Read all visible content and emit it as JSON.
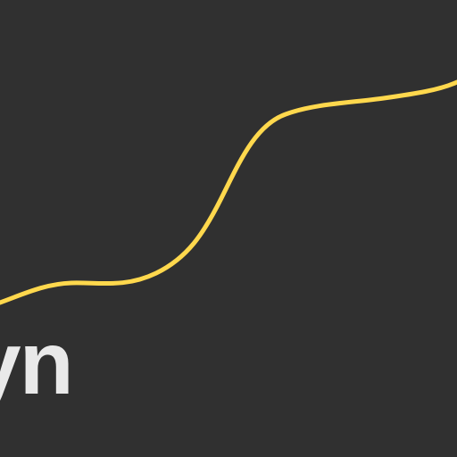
{
  "canvas": {
    "background_color": "#303030"
  },
  "curve": {
    "color": "#ffd84d",
    "shape": "smooth-rising-s-curve"
  },
  "text": {
    "visible_fragment": "yn",
    "color": "#e9e9e9"
  }
}
